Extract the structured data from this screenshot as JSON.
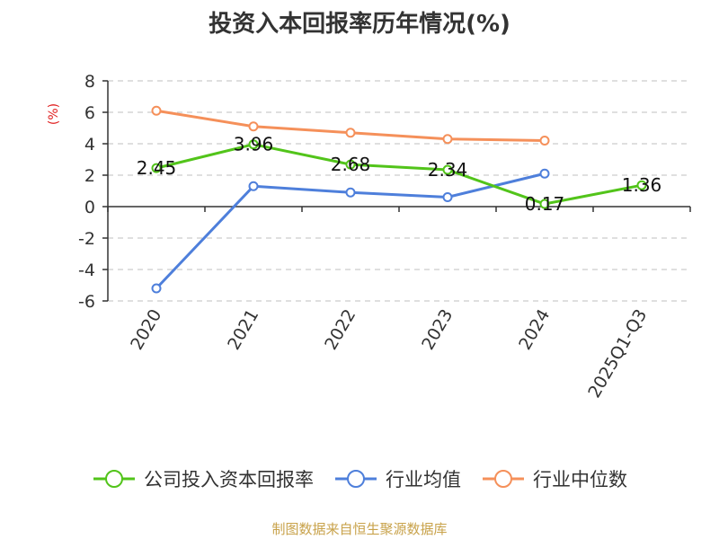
{
  "title": "投资入本回报率历年情况(%)",
  "source": "制图数据来自恒生聚源数据库",
  "chart_data": {
    "type": "line",
    "title": "投资入本回报率历年情况(%)",
    "ylabel": "(%)",
    "xlabel": "",
    "categories": [
      "2020",
      "2021",
      "2022",
      "2023",
      "2024",
      "2025Q1-Q3"
    ],
    "ylim": [
      -6,
      8
    ],
    "yticks": [
      8,
      6,
      4,
      2,
      0,
      -2,
      -4,
      -6
    ],
    "grid": true,
    "legend_position": "bottom",
    "series": [
      {
        "name": "公司投入资本回报率",
        "color": "#52c41a",
        "values": [
          2.45,
          3.96,
          2.68,
          2.34,
          0.17,
          1.36
        ],
        "data_labels": [
          "2.45",
          "3.96",
          "2.68",
          "2.34",
          "0.17",
          "1.36"
        ]
      },
      {
        "name": "行业均值",
        "color": "#4e7fdb",
        "values": [
          -5.2,
          1.3,
          0.9,
          0.6,
          2.1,
          null
        ]
      },
      {
        "name": "行业中位数",
        "color": "#f5905a",
        "values": [
          6.1,
          5.1,
          4.7,
          4.3,
          4.2,
          null
        ]
      }
    ]
  },
  "colors": {
    "unit_label": "#e02020",
    "grid": "#cccccc",
    "axis": "#333333"
  }
}
